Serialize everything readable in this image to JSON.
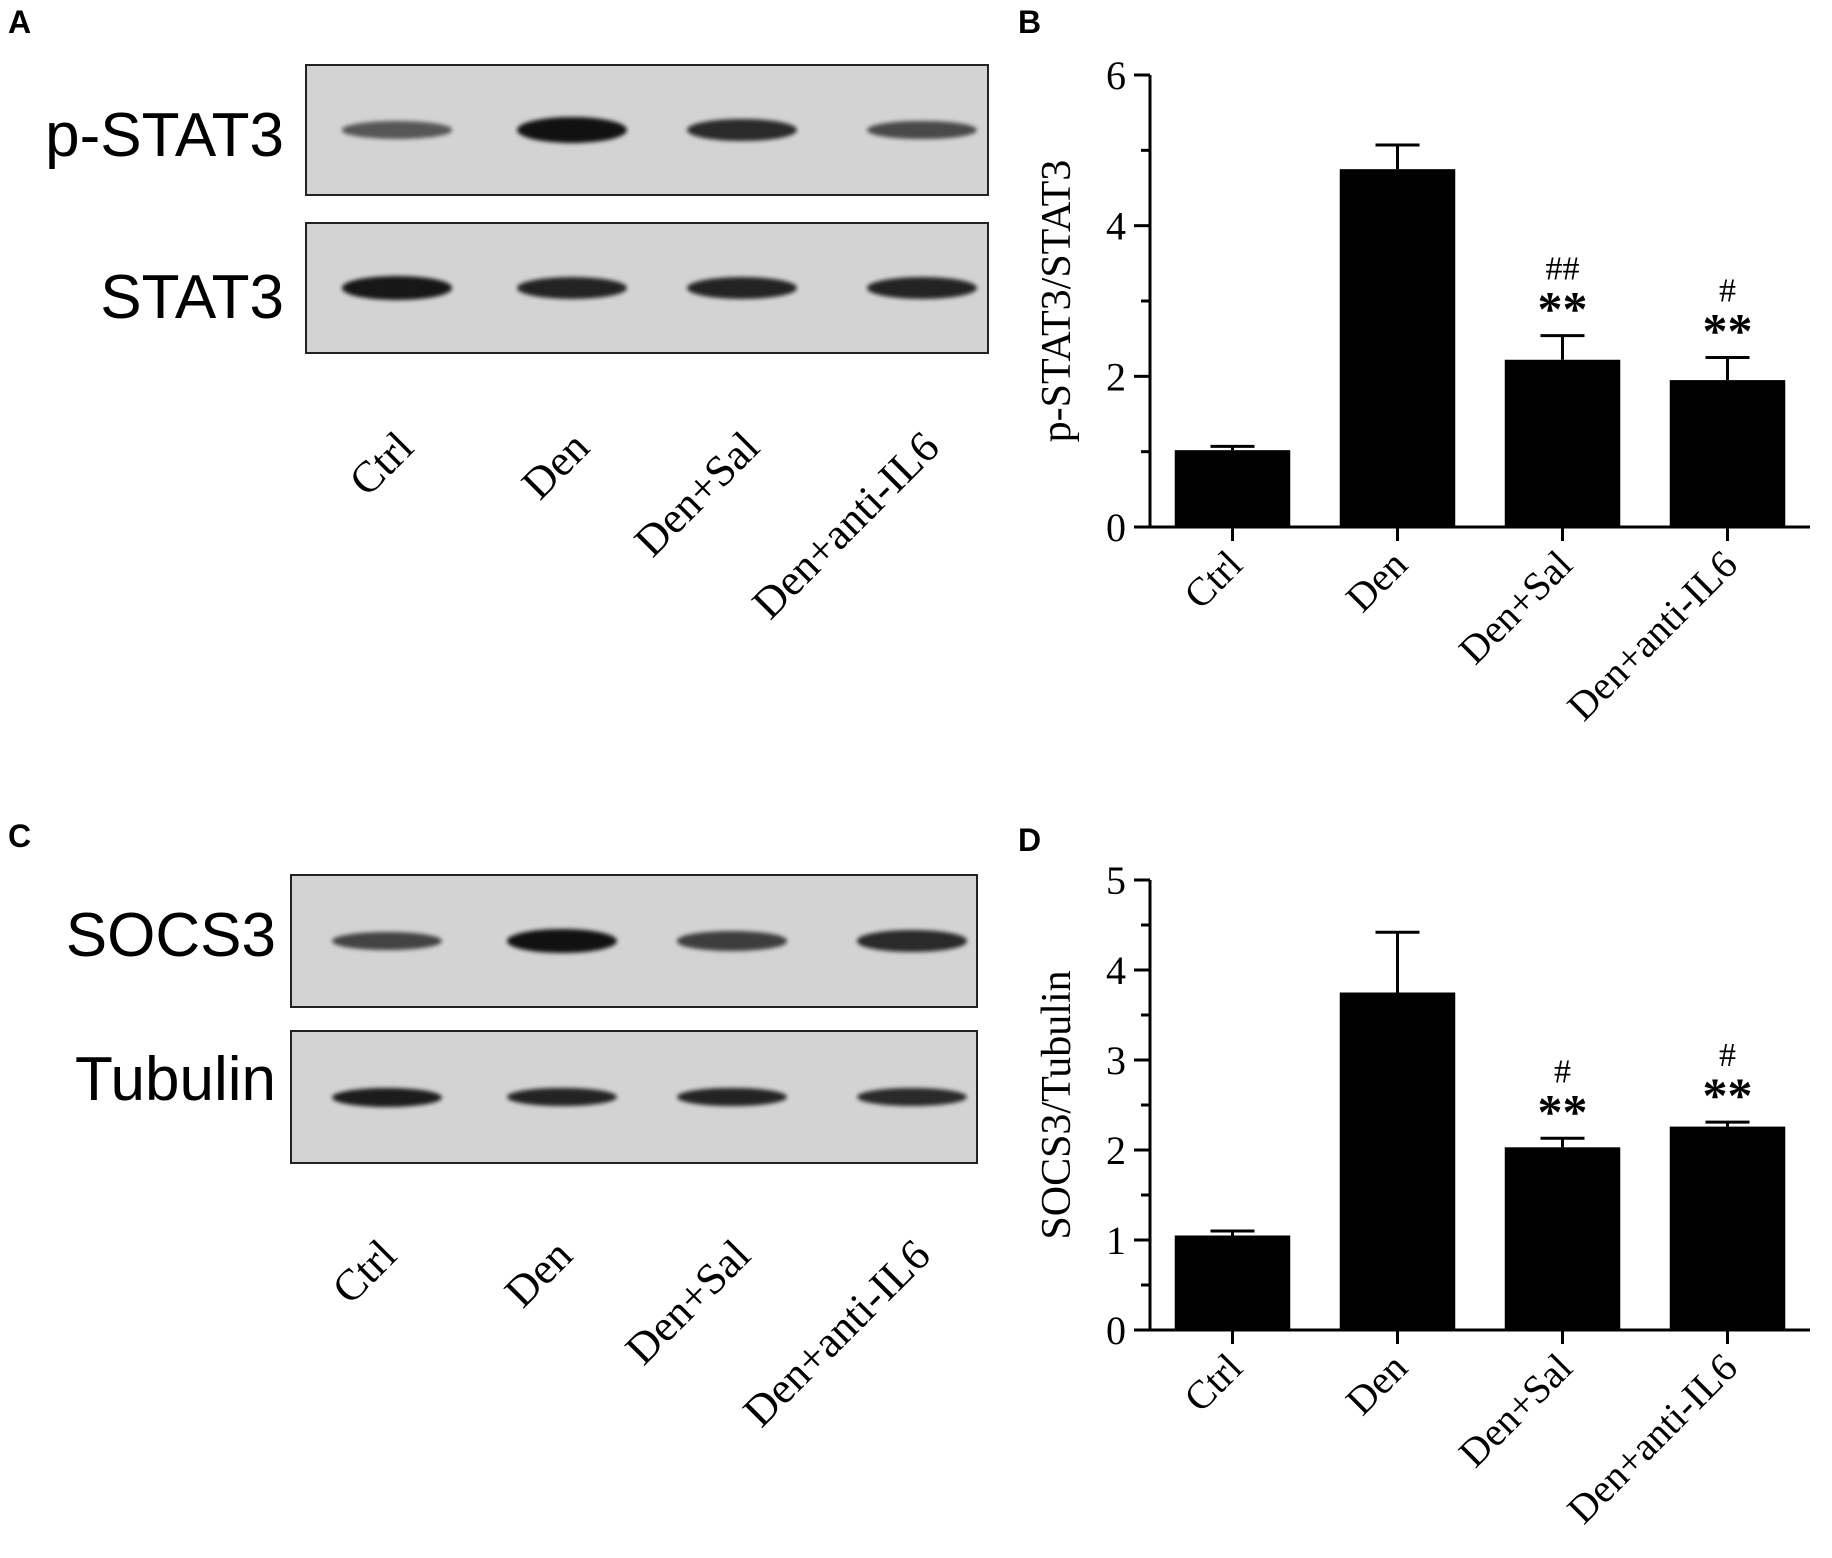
{
  "panels": {
    "a_letter": "A",
    "b_letter": "B",
    "c_letter": "C",
    "d_letter": "D"
  },
  "blot_a": {
    "rows": [
      {
        "label": "p-STAT3",
        "intensities": [
          0.45,
          1.0,
          0.8,
          0.55
        ]
      },
      {
        "label": "STAT3",
        "intensities": [
          0.95,
          0.85,
          0.85,
          0.85
        ]
      }
    ],
    "lanes": [
      "Ctrl",
      "Den",
      "Den+Sal",
      "Den+anti-IL6"
    ]
  },
  "blot_c": {
    "rows": [
      {
        "label": "SOCS3",
        "intensities": [
          0.6,
          1.0,
          0.65,
          0.8
        ]
      },
      {
        "label": "Tubulin",
        "intensities": [
          0.9,
          0.85,
          0.85,
          0.8
        ]
      }
    ],
    "lanes": [
      "Ctrl",
      "Den",
      "Den+Sal",
      "Den+anti-IL6"
    ]
  },
  "chart_data": [
    {
      "type": "bar",
      "panel": "B",
      "categories": [
        "Ctrl",
        "Den",
        "Den+Sal",
        "Den+anti-IL6"
      ],
      "values": [
        1.02,
        4.75,
        2.22,
        1.95
      ],
      "errors": [
        0.05,
        0.32,
        0.32,
        0.3
      ],
      "annotations_top": [
        "",
        "",
        "##",
        "#"
      ],
      "annotations_bottom": [
        "",
        "",
        "**",
        "**"
      ],
      "ylabel": "p-STAT3/STAT3",
      "ylim": [
        0,
        6
      ],
      "yticks": [
        0,
        2,
        4,
        6
      ],
      "minor_ticks": 2,
      "bar_color": "#000000"
    },
    {
      "type": "bar",
      "panel": "D",
      "categories": [
        "Ctrl",
        "Den",
        "Den+Sal",
        "Den+anti-IL6"
      ],
      "values": [
        1.05,
        3.75,
        2.03,
        2.26
      ],
      "errors": [
        0.05,
        0.67,
        0.1,
        0.05
      ],
      "annotations_top": [
        "",
        "",
        "#",
        "#"
      ],
      "annotations_bottom": [
        "",
        "",
        "**",
        "**"
      ],
      "ylabel": "SOCS3/Tubulin",
      "ylim": [
        0,
        5
      ],
      "yticks": [
        0,
        1,
        2,
        3,
        4,
        5
      ],
      "minor_ticks": 2,
      "bar_color": "#000000"
    }
  ]
}
